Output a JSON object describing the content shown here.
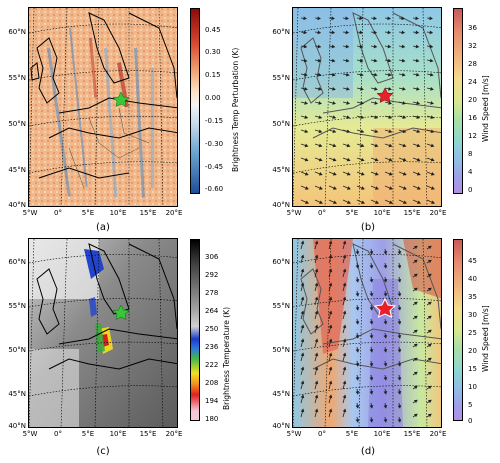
{
  "panels": [
    {
      "label": "(a)",
      "lat_ticks": [
        "60°N",
        "55°N",
        "50°N",
        "45°N",
        "40°N"
      ],
      "lon_ticks": [
        "5°W",
        "0°",
        "5°E",
        "10°E",
        "15°E",
        "20°E"
      ],
      "colorbar": {
        "label": "Brightness Temp Perturbation (K)",
        "ticks": [
          "0.45",
          "0.30",
          "0.15",
          "0.00",
          "-0.15",
          "-0.30",
          "-0.45",
          "-0.60"
        ],
        "colors": [
          "#8b0a0a",
          "#d6452f",
          "#f0a16f",
          "#fbe2c6",
          "#f4f4f4",
          "#c9dbea",
          "#6aa6d0",
          "#1f4d99"
        ]
      },
      "marker": {
        "shape": "star",
        "color": "#37c837"
      }
    },
    {
      "label": "(b)",
      "lat_ticks": [
        "60°N",
        "55°N",
        "50°N",
        "45°N",
        "40°N"
      ],
      "lon_ticks": [
        "5°W",
        "0°",
        "5°E",
        "10°E",
        "15°E",
        "20°E"
      ],
      "colorbar": {
        "label": "Wind Speed [m/s]",
        "ticks": [
          "36",
          "32",
          "28",
          "24",
          "20",
          "16",
          "12",
          "8",
          "4",
          "0"
        ],
        "colors": [
          "#c95a5a",
          "#e6896e",
          "#f0b27d",
          "#f4dc8a",
          "#d8e88e",
          "#a8e0a6",
          "#8ed7cf",
          "#8fbfe6",
          "#9e9fe8",
          "#b28ee6"
        ]
      },
      "marker": {
        "shape": "star",
        "color": "#e8202a"
      }
    },
    {
      "label": "(c)",
      "lat_ticks": [
        "60°N",
        "55°N",
        "50°N",
        "45°N",
        "40°N"
      ],
      "lon_ticks": [
        "5°W",
        "0°",
        "5°E",
        "10°E",
        "15°E",
        "20°E"
      ],
      "colorbar": {
        "label": "Brightness Temperature (K)",
        "ticks": [
          "306",
          "292",
          "278",
          "264",
          "250",
          "236",
          "222",
          "208",
          "194",
          "180"
        ],
        "colors": [
          "#000000",
          "#3a3a3a",
          "#6e6e6e",
          "#a0a0a0",
          "#d0d0d0",
          "#1a3cc8",
          "#44b848",
          "#f2e020",
          "#e02020",
          "#f4c8d8"
        ]
      },
      "marker": {
        "shape": "star",
        "color": "#37c837"
      }
    },
    {
      "label": "(d)",
      "lat_ticks": [
        "60°N",
        "55°N",
        "50°N",
        "45°N",
        "40°N"
      ],
      "lon_ticks": [
        "5°W",
        "0°",
        "5°E",
        "10°E",
        "15°E",
        "20°E"
      ],
      "colorbar": {
        "label": "Wind Speed [m/s]",
        "ticks": [
          "45",
          "40",
          "35",
          "30",
          "25",
          "20",
          "15",
          "10",
          "5",
          "0"
        ],
        "colors": [
          "#c95a5a",
          "#e6896e",
          "#f0b27d",
          "#f4dc8a",
          "#d8e88e",
          "#a8e0a6",
          "#8ed7cf",
          "#8fbfe6",
          "#9e9fe8",
          "#b28ee6"
        ]
      },
      "marker": {
        "shape": "star",
        "color": "#e8202a"
      }
    }
  ]
}
